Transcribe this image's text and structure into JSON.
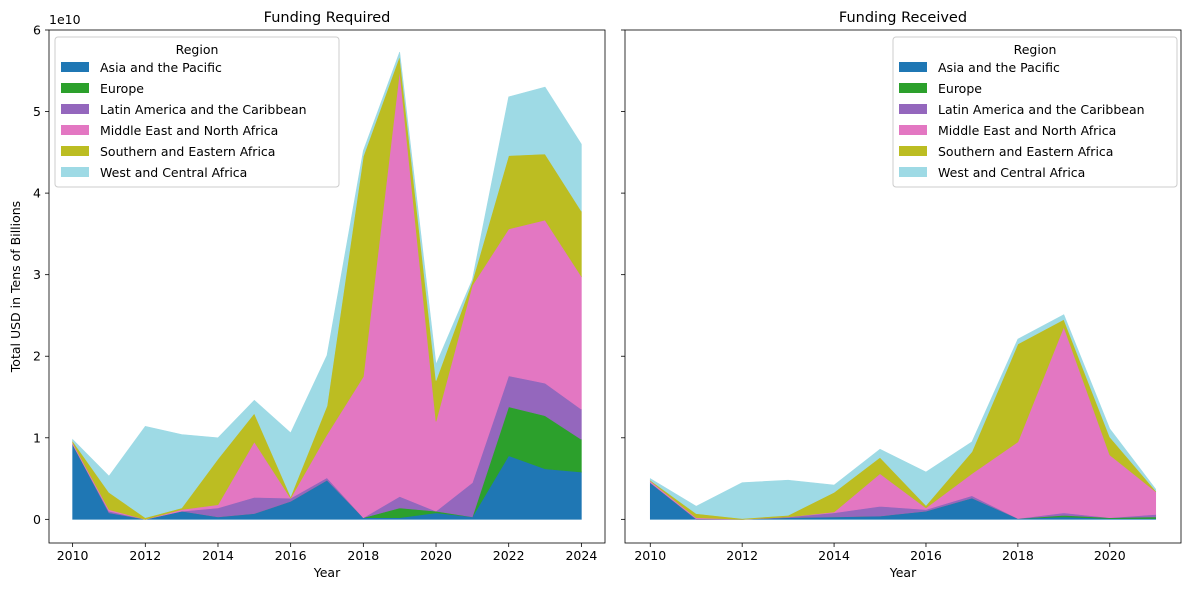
{
  "chart_data": [
    {
      "type": "area",
      "stacked": true,
      "title": "Funding Required",
      "xlabel": "Year",
      "ylabel": "Total USD in Tens of Billions",
      "y_offset_label": "1e10",
      "xlim": [
        2009.35,
        2024.65
      ],
      "ylim": [
        -0.29,
        6.0
      ],
      "xticks": [
        2010,
        2012,
        2014,
        2016,
        2018,
        2020,
        2022,
        2024
      ],
      "yticks": [
        0,
        1,
        2,
        3,
        4,
        5,
        6
      ],
      "legend": {
        "title": "Region",
        "placement": "upper-left"
      },
      "x": [
        2010,
        2011,
        2012,
        2013,
        2014,
        2015,
        2016,
        2017,
        2018,
        2019,
        2020,
        2021,
        2022,
        2023,
        2024
      ],
      "series": [
        {
          "name": "Asia and the Pacific",
          "color": "#1f77b4",
          "values": [
            0.92,
            0.08,
            0.0,
            0.1,
            0.03,
            0.07,
            0.22,
            0.48,
            0.02,
            0.02,
            0.08,
            0.03,
            0.78,
            0.62,
            0.58
          ]
        },
        {
          "name": "Europe",
          "color": "#2ca02c",
          "values": [
            0.0,
            0.0,
            0.0,
            0.0,
            0.0,
            0.0,
            0.0,
            0.0,
            0.0,
            0.12,
            0.02,
            0.0,
            0.6,
            0.65,
            0.4
          ]
        },
        {
          "name": "Latin America and the Caribbean",
          "color": "#9467bd",
          "values": [
            0.0,
            0.02,
            0.0,
            0.0,
            0.11,
            0.2,
            0.04,
            0.03,
            0.0,
            0.14,
            0.0,
            0.42,
            0.38,
            0.4,
            0.37
          ]
        },
        {
          "name": "Middle East and North Africa",
          "color": "#e377c2",
          "values": [
            0.02,
            0.02,
            0.0,
            0.02,
            0.04,
            0.68,
            0.0,
            0.53,
            1.73,
            5.22,
            1.1,
            2.42,
            1.8,
            2.0,
            1.63
          ]
        },
        {
          "name": "Southern and Eastern Africa",
          "color": "#bcbd22",
          "values": [
            0.02,
            0.21,
            0.02,
            0.02,
            0.56,
            0.35,
            0.02,
            0.35,
            2.7,
            0.18,
            0.5,
            0.05,
            0.9,
            0.81,
            0.8
          ]
        },
        {
          "name": "West and Central Africa",
          "color": "#9edae5",
          "values": [
            0.02,
            0.2,
            1.12,
            0.9,
            0.26,
            0.16,
            0.78,
            0.62,
            0.07,
            0.05,
            0.2,
            0.02,
            0.72,
            0.82,
            0.82
          ]
        }
      ]
    },
    {
      "type": "area",
      "stacked": true,
      "title": "Funding Received",
      "xlabel": "Year",
      "ylabel": "",
      "xlim": [
        2009.45,
        2021.55
      ],
      "ylim": [
        -0.29,
        6.0
      ],
      "xticks": [
        2010,
        2012,
        2014,
        2016,
        2018,
        2020
      ],
      "yticks": [
        0,
        1,
        2,
        3,
        4,
        5,
        6
      ],
      "legend": {
        "title": "Region",
        "placement": "upper-right"
      },
      "x": [
        2010,
        2011,
        2012,
        2013,
        2014,
        2015,
        2016,
        2017,
        2018,
        2019,
        2020,
        2021
      ],
      "series": [
        {
          "name": "Asia and the Pacific",
          "color": "#1f77b4",
          "values": [
            0.45,
            0.0,
            0.0,
            0.02,
            0.03,
            0.04,
            0.1,
            0.26,
            0.01,
            0.03,
            0.01,
            0.01
          ]
        },
        {
          "name": "Europe",
          "color": "#2ca02c",
          "values": [
            0.0,
            0.0,
            0.0,
            0.0,
            0.0,
            0.0,
            0.0,
            0.0,
            0.0,
            0.02,
            0.01,
            0.02
          ]
        },
        {
          "name": "Latin America and the Caribbean",
          "color": "#9467bd",
          "values": [
            0.0,
            0.01,
            0.0,
            0.01,
            0.05,
            0.12,
            0.02,
            0.03,
            0.0,
            0.03,
            0.0,
            0.03
          ]
        },
        {
          "name": "Middle East and North Africa",
          "color": "#e377c2",
          "values": [
            0.02,
            0.01,
            0.0,
            0.0,
            0.01,
            0.4,
            0.02,
            0.27,
            0.94,
            2.28,
            0.77,
            0.28
          ]
        },
        {
          "name": "Southern and Eastern Africa",
          "color": "#bcbd22",
          "values": [
            0.01,
            0.05,
            0.01,
            0.02,
            0.24,
            0.2,
            0.03,
            0.27,
            1.2,
            0.09,
            0.22,
            0.01
          ]
        },
        {
          "name": "West and Central Africa",
          "color": "#9edae5",
          "values": [
            0.02,
            0.09,
            0.44,
            0.43,
            0.09,
            0.1,
            0.41,
            0.12,
            0.06,
            0.06,
            0.1,
            0.02
          ]
        }
      ]
    }
  ]
}
